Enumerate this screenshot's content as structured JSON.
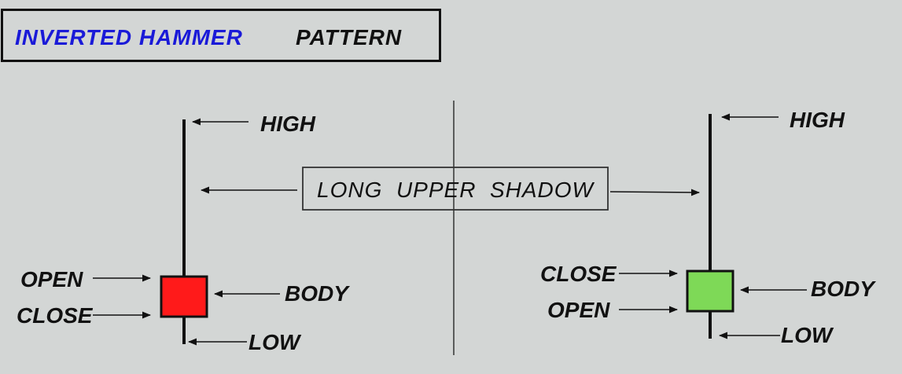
{
  "title": {
    "part1": "INVERTED HAMMER",
    "part2": "PATTERN",
    "part1_color": "#1a1ad8",
    "part2_color": "#111111"
  },
  "center_label": "LONG  UPPER  SHADOW",
  "bearish_candle": {
    "body_color": "#ff1a1a",
    "high_label": "HIGH",
    "open_label": "OPEN",
    "close_label": "CLOSE",
    "body_label": "BODY",
    "low_label": "LOW"
  },
  "bullish_candle": {
    "body_color": "#7ed957",
    "high_label": "HIGH",
    "close_label": "CLOSE",
    "open_label": "OPEN",
    "body_label": "BODY",
    "low_label": "LOW"
  }
}
